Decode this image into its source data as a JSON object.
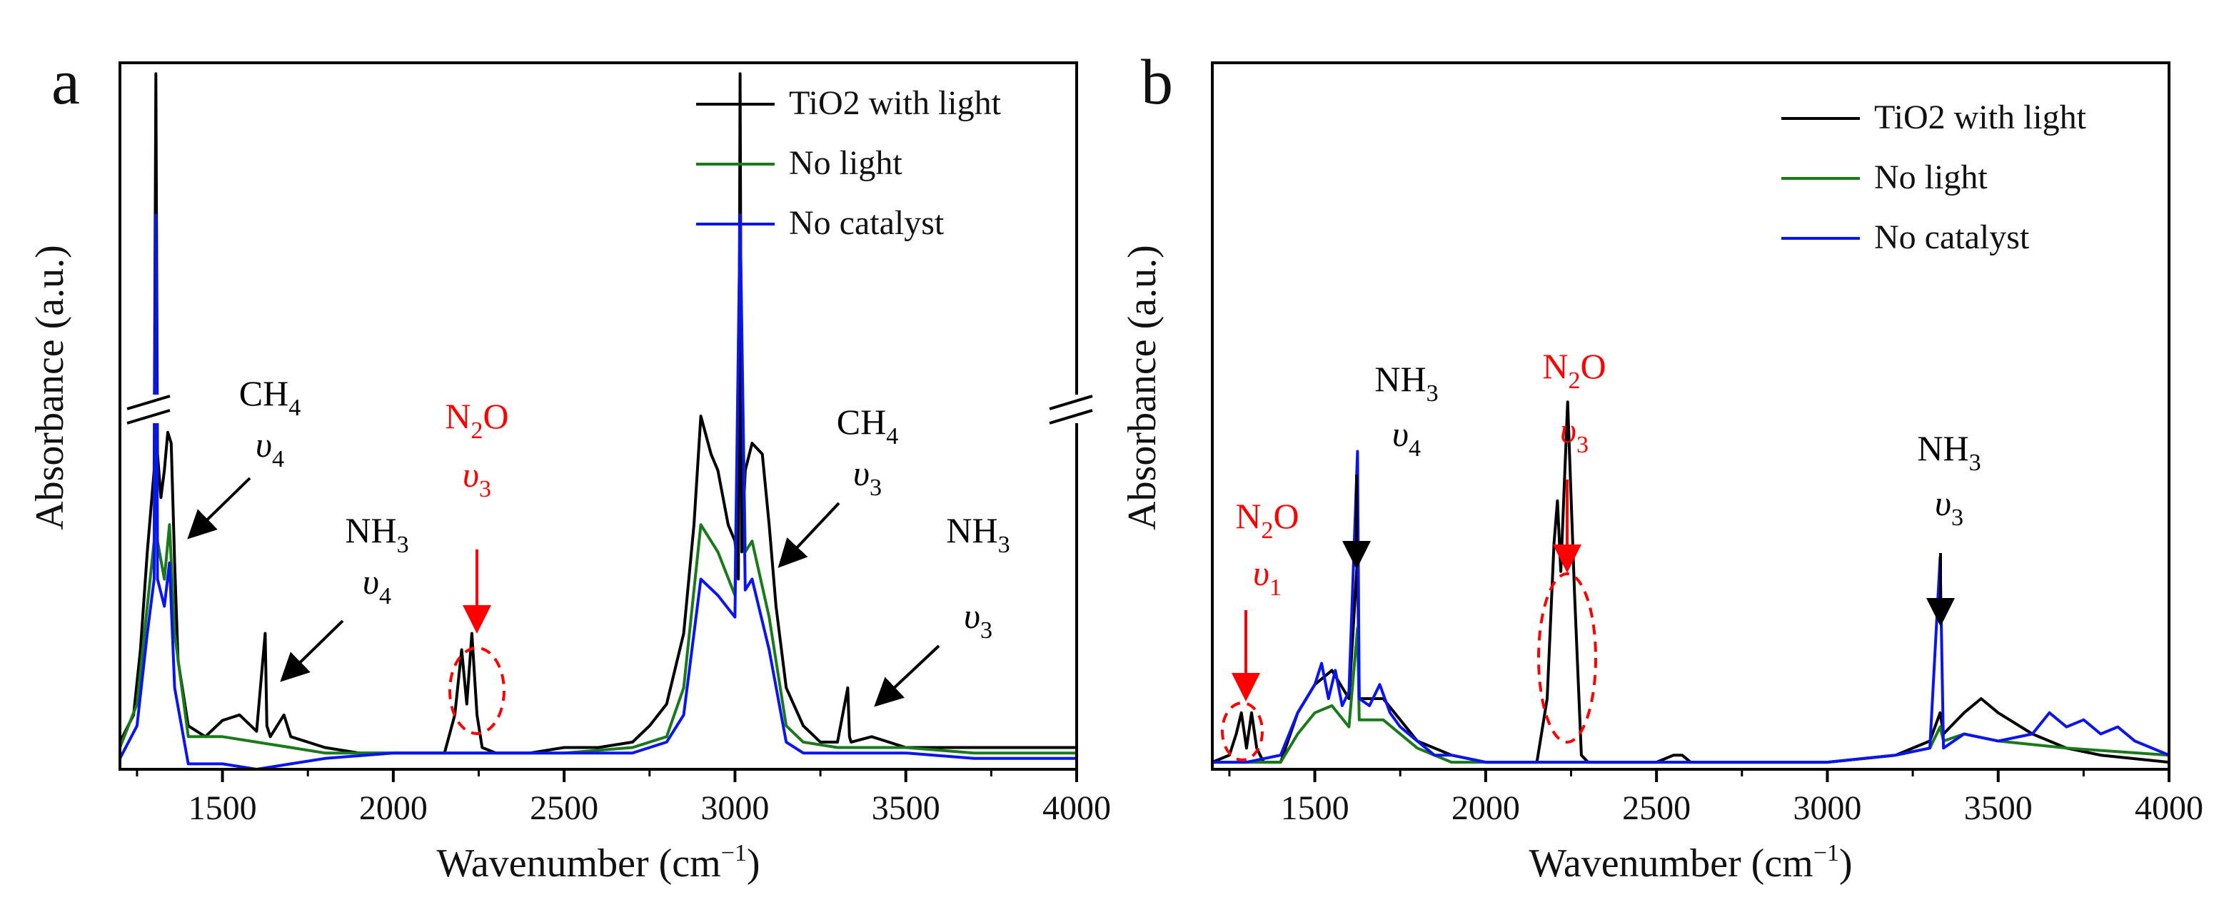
{
  "chart_data": [
    {
      "panel": "a",
      "type": "line",
      "xlabel": "Wavenumber (cm",
      "xlabel_sup": "−1",
      "xlabel_end": ")",
      "ylabel": "Absorbance (a.u.)",
      "xlim": [
        1200,
        4000
      ],
      "ylim": [
        0,
        1.3
      ],
      "y_axis_break": true,
      "xticks": [
        1500,
        2000,
        2500,
        3000,
        3500,
        4000
      ],
      "legend": [
        "TiO2 with light",
        "No light",
        "No catalyst"
      ],
      "legend_position": "top-right",
      "series": [
        {
          "name": "TiO2 with light",
          "color": "#000000",
          "x": [
            1200,
            1240,
            1260,
            1280,
            1300,
            1305,
            1310,
            1320,
            1330,
            1340,
            1350,
            1360,
            1370,
            1400,
            1450,
            1500,
            1550,
            1600,
            1625,
            1630,
            1640,
            1680,
            1700,
            1750,
            1800,
            1900,
            2000,
            2100,
            2150,
            2180,
            2200,
            2215,
            2230,
            2245,
            2260,
            2300,
            2400,
            2500,
            2600,
            2700,
            2750,
            2800,
            2850,
            2880,
            2900,
            2930,
            2950,
            2980,
            3000,
            3010,
            3015,
            3020,
            3030,
            3050,
            3080,
            3100,
            3120,
            3150,
            3200,
            3250,
            3300,
            3330,
            3335,
            3340,
            3400,
            3450,
            3500,
            3600,
            3700,
            3800,
            3900,
            4000
          ],
          "y": [
            0.05,
            0.1,
            0.22,
            0.4,
            0.55,
            1.28,
            0.58,
            0.5,
            0.55,
            0.62,
            0.6,
            0.38,
            0.2,
            0.08,
            0.06,
            0.09,
            0.1,
            0.07,
            0.25,
            0.08,
            0.06,
            0.1,
            0.06,
            0.05,
            0.04,
            0.03,
            0.03,
            0.03,
            0.03,
            0.1,
            0.22,
            0.12,
            0.25,
            0.1,
            0.04,
            0.03,
            0.03,
            0.04,
            0.04,
            0.05,
            0.08,
            0.12,
            0.25,
            0.45,
            0.65,
            0.58,
            0.55,
            0.45,
            0.42,
            0.35,
            1.28,
            0.4,
            0.55,
            0.6,
            0.58,
            0.45,
            0.3,
            0.15,
            0.08,
            0.05,
            0.05,
            0.15,
            0.06,
            0.05,
            0.06,
            0.05,
            0.04,
            0.04,
            0.04,
            0.04,
            0.04,
            0.04
          ]
        },
        {
          "name": "No light",
          "color": "#1a7a1a",
          "x": [
            1200,
            1250,
            1280,
            1300,
            1305,
            1310,
            1330,
            1345,
            1360,
            1400,
            1500,
            1600,
            1700,
            1800,
            2000,
            2200,
            2500,
            2700,
            2800,
            2850,
            2900,
            2950,
            3000,
            3015,
            3030,
            3050,
            3100,
            3150,
            3200,
            3300,
            3500,
            3700,
            4000
          ],
          "y": [
            0.04,
            0.12,
            0.3,
            0.42,
            1.02,
            0.42,
            0.35,
            0.45,
            0.25,
            0.06,
            0.06,
            0.05,
            0.04,
            0.03,
            0.03,
            0.03,
            0.03,
            0.04,
            0.06,
            0.15,
            0.45,
            0.4,
            0.32,
            1.02,
            0.4,
            0.42,
            0.28,
            0.08,
            0.05,
            0.04,
            0.04,
            0.03,
            0.03
          ]
        },
        {
          "name": "No catalyst",
          "color": "#0a14f0",
          "x": [
            1200,
            1250,
            1280,
            1300,
            1305,
            1310,
            1330,
            1345,
            1360,
            1400,
            1500,
            1600,
            1700,
            1800,
            2000,
            2200,
            2500,
            2700,
            2800,
            2850,
            2900,
            2950,
            3000,
            3015,
            3030,
            3050,
            3100,
            3150,
            3200,
            3300,
            3500,
            3700,
            4000
          ],
          "y": [
            0.02,
            0.08,
            0.25,
            0.35,
            1.02,
            0.35,
            0.3,
            0.38,
            0.15,
            0.01,
            0.01,
            0.0,
            0.01,
            0.02,
            0.03,
            0.03,
            0.03,
            0.03,
            0.05,
            0.1,
            0.35,
            0.32,
            0.28,
            1.02,
            0.33,
            0.35,
            0.22,
            0.05,
            0.03,
            0.03,
            0.03,
            0.02,
            0.02
          ]
        }
      ],
      "annotations": [
        {
          "id": "ch4v4",
          "species": "CH",
          "sub": "4",
          "mode": "υ",
          "mode_sub": "4",
          "color": "black"
        },
        {
          "id": "nh3v4",
          "species": "NH",
          "sub": "3",
          "mode": "υ",
          "mode_sub": "4",
          "color": "black"
        },
        {
          "id": "n2ov3",
          "species": "N",
          "sub": "2",
          "species_end": "O",
          "mode": "υ",
          "mode_sub": "3",
          "color": "red"
        },
        {
          "id": "ch4v3",
          "species": "CH",
          "sub": "4",
          "mode": "υ",
          "mode_sub": "3",
          "color": "black"
        },
        {
          "id": "nh3v3",
          "species": "NH",
          "sub": "3",
          "mode": "υ",
          "mode_sub": "3",
          "color": "black"
        }
      ]
    },
    {
      "panel": "b",
      "type": "line",
      "xlabel": "Wavenumber (cm",
      "xlabel_sup": "−1",
      "xlabel_end": ")",
      "ylabel": "Absorbance (a.u.)",
      "xlim": [
        1200,
        4000
      ],
      "ylim": [
        0,
        1.0
      ],
      "xticks": [
        1500,
        2000,
        2500,
        3000,
        3500,
        4000
      ],
      "legend": [
        "TiO2 with light",
        "No light",
        "No catalyst"
      ],
      "legend_position": "top-right",
      "series": [
        {
          "name": "TiO2 with light",
          "color": "#000000",
          "x": [
            1200,
            1250,
            1270,
            1285,
            1300,
            1315,
            1330,
            1350,
            1400,
            1450,
            1500,
            1550,
            1600,
            1625,
            1630,
            1700,
            1800,
            1900,
            2000,
            2100,
            2150,
            2180,
            2200,
            2210,
            2220,
            2240,
            2260,
            2280,
            2300,
            2400,
            2500,
            2550,
            2575,
            2600,
            2700,
            3000,
            3200,
            3300,
            3330,
            3340,
            3400,
            3450,
            3500,
            3600,
            3700,
            3800,
            4000
          ],
          "y": [
            0.01,
            0.02,
            0.05,
            0.08,
            0.03,
            0.08,
            0.03,
            0.01,
            0.01,
            0.08,
            0.12,
            0.14,
            0.1,
            0.3,
            0.1,
            0.1,
            0.04,
            0.02,
            0.01,
            0.01,
            0.01,
            0.1,
            0.32,
            0.38,
            0.28,
            0.52,
            0.25,
            0.02,
            0.01,
            0.01,
            0.01,
            0.02,
            0.02,
            0.01,
            0.01,
            0.01,
            0.02,
            0.04,
            0.08,
            0.05,
            0.08,
            0.1,
            0.08,
            0.05,
            0.03,
            0.02,
            0.01
          ]
        },
        {
          "name": "No light",
          "color": "#1a7a1a",
          "x": [
            1200,
            1300,
            1400,
            1450,
            1500,
            1550,
            1600,
            1625,
            1630,
            1700,
            1800,
            1900,
            2000,
            2500,
            3000,
            3200,
            3300,
            3330,
            3340,
            3400,
            3500,
            3700,
            4000
          ],
          "y": [
            0.01,
            0.01,
            0.01,
            0.05,
            0.08,
            0.09,
            0.06,
            0.2,
            0.07,
            0.07,
            0.03,
            0.01,
            0.01,
            0.01,
            0.01,
            0.02,
            0.03,
            0.06,
            0.04,
            0.05,
            0.04,
            0.03,
            0.02
          ]
        },
        {
          "name": "No catalyst",
          "color": "#0a14f0",
          "x": [
            1200,
            1300,
            1400,
            1450,
            1500,
            1520,
            1540,
            1560,
            1580,
            1600,
            1625,
            1630,
            1660,
            1690,
            1720,
            1750,
            1800,
            1850,
            1900,
            2000,
            2200,
            2500,
            3000,
            3200,
            3300,
            3330,
            3340,
            3400,
            3500,
            3600,
            3650,
            3700,
            3750,
            3800,
            3850,
            3900,
            4000
          ],
          "y": [
            0.01,
            0.01,
            0.02,
            0.08,
            0.12,
            0.15,
            0.1,
            0.14,
            0.09,
            0.11,
            0.45,
            0.1,
            0.09,
            0.12,
            0.08,
            0.06,
            0.04,
            0.02,
            0.02,
            0.01,
            0.01,
            0.01,
            0.01,
            0.02,
            0.03,
            0.3,
            0.03,
            0.05,
            0.04,
            0.05,
            0.08,
            0.06,
            0.07,
            0.05,
            0.06,
            0.04,
            0.02
          ]
        }
      ],
      "annotations": [
        {
          "id": "n2ov1",
          "species": "N",
          "sub": "2",
          "species_end": "O",
          "mode": "υ",
          "mode_sub": "1",
          "color": "red"
        },
        {
          "id": "nh3v4",
          "species": "NH",
          "sub": "3",
          "mode": "υ",
          "mode_sub": "4",
          "color": "black"
        },
        {
          "id": "n2ov3",
          "species": "N",
          "sub": "2",
          "species_end": "O",
          "mode": "υ",
          "mode_sub": "3",
          "color": "red"
        },
        {
          "id": "nh3v3",
          "species": "NH",
          "sub": "3",
          "mode": "υ",
          "mode_sub": "3",
          "color": "black"
        }
      ]
    }
  ]
}
